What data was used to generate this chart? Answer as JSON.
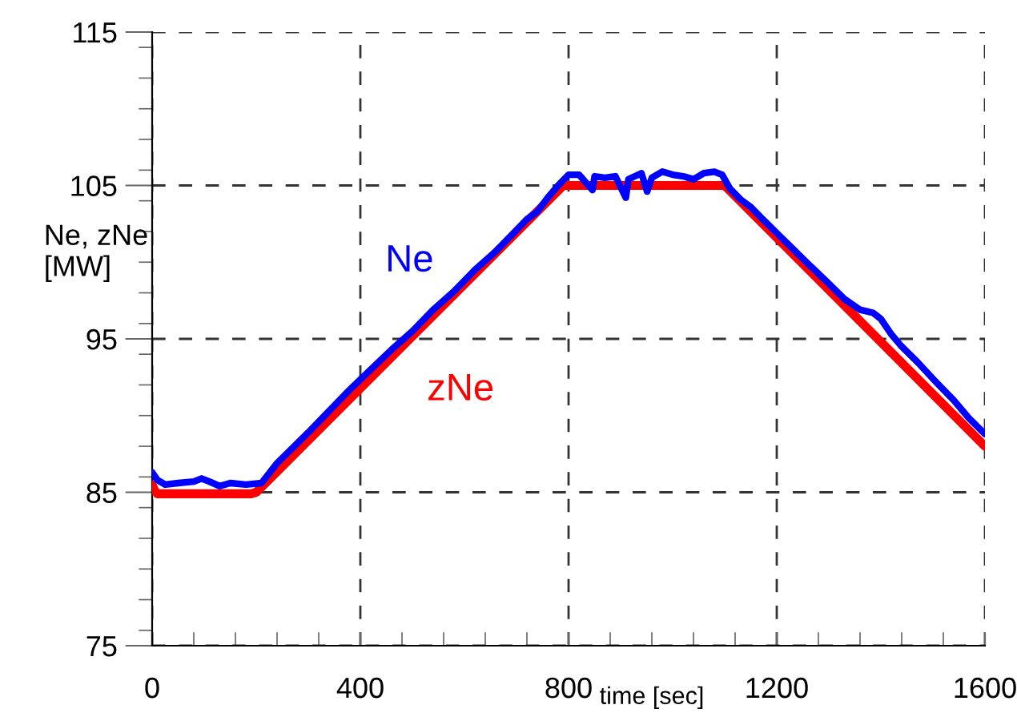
{
  "chart_data": {
    "type": "line",
    "xlabel": "time [sec]",
    "ylabel": "Ne, zNe\n[MW]",
    "xlim": [
      0,
      1600
    ],
    "ylim": [
      75,
      115
    ],
    "xticks": [
      0,
      400,
      800,
      1200,
      1600
    ],
    "yticks": [
      75,
      85,
      95,
      105,
      115
    ],
    "grid": true,
    "line_style": "solid",
    "series": [
      {
        "name": "zNe",
        "color": "#ff0000",
        "x": [
          0,
          5,
          10,
          60,
          120,
          190,
          200,
          790,
          900,
          1000,
          1100,
          1600
        ],
        "values": [
          85.5,
          85.1,
          84.9,
          84.9,
          84.9,
          84.9,
          85.0,
          105.0,
          105.0,
          105.0,
          105.0,
          88.0
        ]
      },
      {
        "name": "Ne",
        "color": "#0000ff",
        "x": [
          0,
          10,
          25,
          50,
          80,
          95,
          110,
          130,
          150,
          180,
          210,
          240,
          270,
          300,
          340,
          380,
          420,
          460,
          500,
          540,
          580,
          620,
          660,
          700,
          720,
          740,
          760,
          780,
          800,
          820,
          846,
          850,
          870,
          890,
          910,
          915,
          940,
          951,
          960,
          980,
          1000,
          1020,
          1040,
          1060,
          1080,
          1095,
          1110,
          1130,
          1150,
          1170,
          1185,
          1200,
          1230,
          1260,
          1300,
          1330,
          1360,
          1385,
          1400,
          1420,
          1440,
          1470,
          1500,
          1540,
          1570,
          1600
        ],
        "values": [
          86.3,
          85.8,
          85.5,
          85.6,
          85.7,
          85.9,
          85.7,
          85.4,
          85.6,
          85.5,
          85.6,
          86.9,
          87.9,
          88.9,
          90.3,
          91.7,
          93.0,
          94.3,
          95.5,
          96.9,
          98.1,
          99.5,
          100.7,
          102.1,
          102.8,
          103.3,
          104.2,
          105.0,
          105.7,
          105.7,
          104.7,
          105.6,
          105.5,
          105.6,
          104.2,
          105.4,
          105.8,
          104.6,
          105.5,
          105.9,
          105.7,
          105.6,
          105.4,
          105.8,
          105.9,
          105.7,
          104.8,
          104.1,
          103.6,
          102.9,
          102.4,
          101.9,
          100.9,
          99.9,
          98.6,
          97.6,
          96.9,
          96.7,
          96.3,
          95.3,
          94.5,
          93.5,
          92.4,
          91.0,
          89.8,
          88.8
        ]
      }
    ]
  }
}
